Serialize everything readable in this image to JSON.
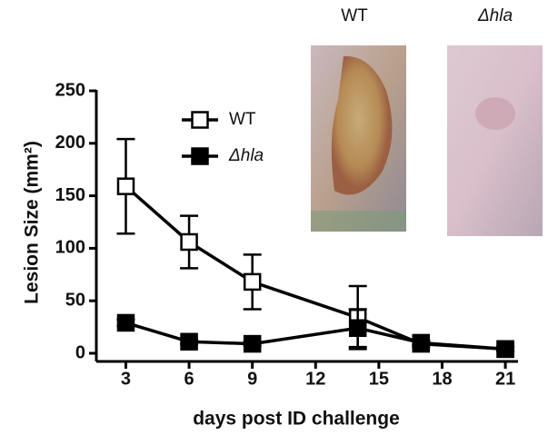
{
  "chart_data": {
    "type": "line",
    "xlabel": "days post ID challenge",
    "ylabel": "Lesion Size (mm²)",
    "xlim": [
      1.6,
      21.6
    ],
    "ylim": [
      0,
      250
    ],
    "xticks": [
      3,
      6,
      9,
      12,
      15,
      18,
      21
    ],
    "yticks": [
      0,
      50,
      100,
      150,
      200,
      250
    ],
    "series": [
      {
        "name": "WT",
        "color": "#000000",
        "marker": "open-square",
        "x": [
          3,
          6,
          9,
          14,
          17,
          21
        ],
        "values": [
          159,
          106,
          68,
          34,
          9,
          4
        ],
        "errors": [
          45,
          25,
          26,
          30,
          3,
          2
        ]
      },
      {
        "name": "Δhla",
        "color": "#000000",
        "marker": "filled-square",
        "x": [
          3,
          6,
          9,
          14,
          17,
          21
        ],
        "values": [
          29,
          11,
          9,
          24,
          10,
          4
        ],
        "errors": [
          3,
          2,
          2,
          18,
          2,
          2
        ]
      }
    ]
  },
  "photos": [
    {
      "label": "WT"
    },
    {
      "label": "Δhla"
    }
  ]
}
